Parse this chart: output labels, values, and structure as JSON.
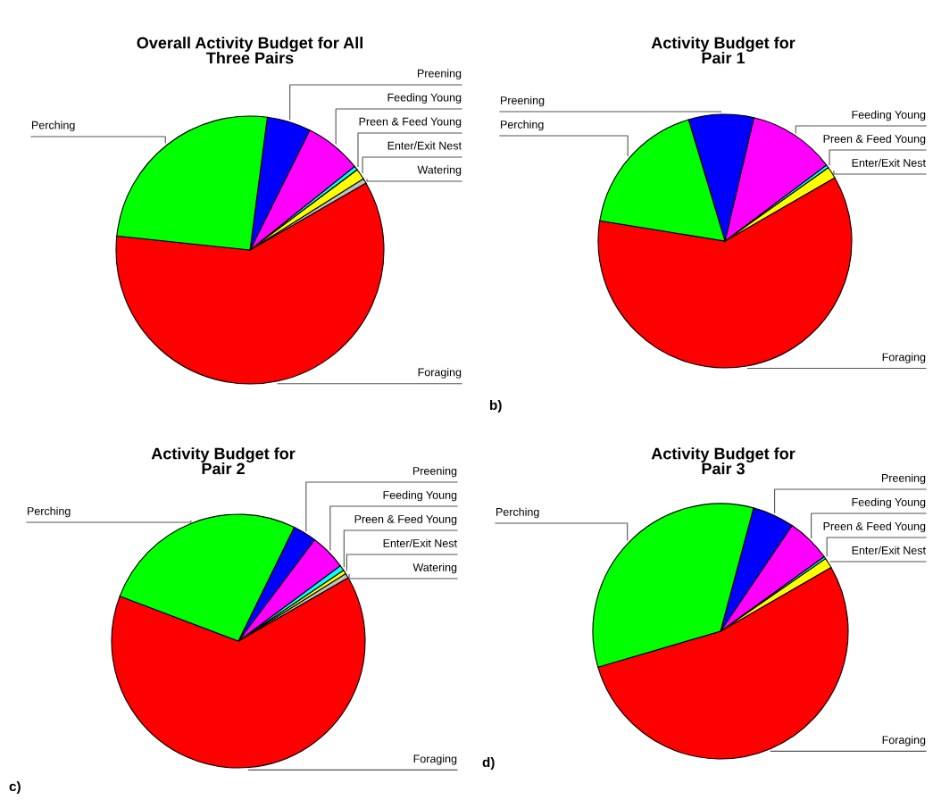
{
  "chart_data": [
    {
      "type": "pie",
      "title": "Overall Activity Budget for All\nThree Pairs",
      "categories": [
        "Foraging",
        "Watering",
        "Enter/Exit Nest",
        "Preen & Feed Young",
        "Feeding Young",
        "Preening",
        "Perching"
      ],
      "values": [
        60.0,
        0.6,
        1.3,
        0.5,
        6.9,
        5.3,
        25.4
      ],
      "colors": [
        "#ff0000",
        "#c0c0c0",
        "#ffff00",
        "#00ffff",
        "#ff00ff",
        "#0000ff",
        "#00ff00"
      ]
    },
    {
      "type": "pie",
      "title": "Activity Budget for\nPair 1",
      "categories": [
        "Foraging",
        "Enter/Exit Nest",
        "Preen & Feed Young",
        "Feeding Young",
        "Preening",
        "Perching"
      ],
      "values": [
        60.9,
        1.5,
        0.4,
        11.1,
        8.3,
        17.8
      ],
      "colors": [
        "#ff0000",
        "#ffff00",
        "#00ffff",
        "#ff00ff",
        "#0000ff",
        "#00ff00"
      ],
      "annotations": [
        "b)"
      ]
    },
    {
      "type": "pie",
      "title": "Activity Budget for\nPair 2",
      "categories": [
        "Foraging",
        "Watering",
        "Enter/Exit Nest",
        "Preen & Feed Young",
        "Feeding Young",
        "Preening",
        "Perching"
      ],
      "values": [
        64.1,
        0.6,
        0.5,
        0.7,
        4.6,
        3.0,
        26.5
      ],
      "colors": [
        "#ff0000",
        "#c0c0c0",
        "#ffff00",
        "#00ffff",
        "#ff00ff",
        "#0000ff",
        "#00ff00"
      ],
      "annotations": [
        "c)"
      ]
    },
    {
      "type": "pie",
      "title": "Activity Budget for\nPair 3",
      "categories": [
        "Foraging",
        "Enter/Exit Nest",
        "Preen & Feed Young",
        "Feeding Young",
        "Preening",
        "Perching"
      ],
      "values": [
        53.8,
        1.3,
        0.3,
        5.6,
        5.3,
        33.7
      ],
      "colors": [
        "#ff0000",
        "#ffff00",
        "#00ffff",
        "#ff00ff",
        "#0000ff",
        "#00ff00"
      ],
      "annotations": [
        "d)"
      ]
    }
  ]
}
